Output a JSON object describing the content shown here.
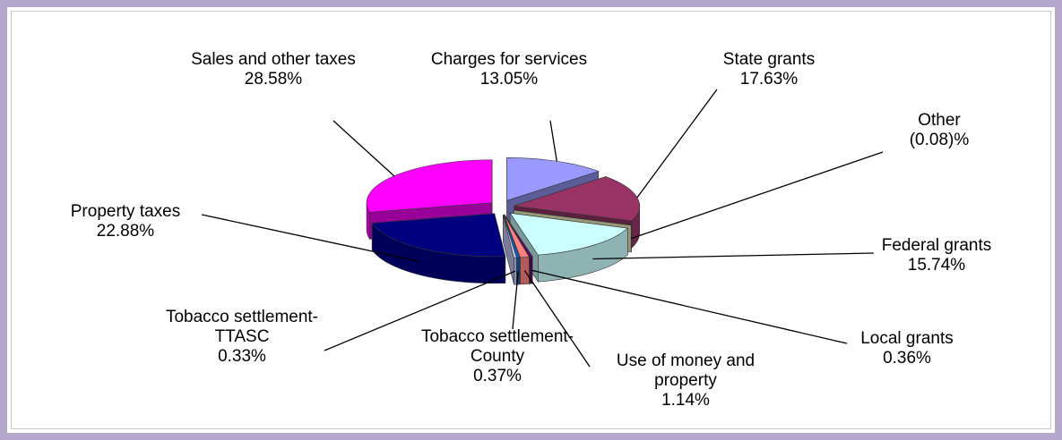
{
  "chart_data": {
    "type": "pie",
    "categories": [
      "Charges for services",
      "State grants",
      "Other",
      "Federal grants",
      "Local grants",
      "Use of money and property",
      "Tobacco settlement-County",
      "Tobacco settlement-TTASC",
      "Property taxes",
      "Sales and other taxes"
    ],
    "values": [
      13.05,
      17.63,
      -0.08,
      15.74,
      0.36,
      1.14,
      0.37,
      0.33,
      22.88,
      28.58
    ],
    "value_labels": [
      "13.05%",
      "17.63%",
      "(0.08)%",
      "15.74%",
      "0.36%",
      "1.14%",
      "0.37%",
      "0.33%",
      "22.88%",
      "28.58%"
    ],
    "colors": [
      "#9999ff",
      "#993366",
      "#ffffcc",
      "#ccffff",
      "#660066",
      "#ff8080",
      "#0066cc",
      "#ccccff",
      "#000080",
      "#ff00ff"
    ]
  }
}
